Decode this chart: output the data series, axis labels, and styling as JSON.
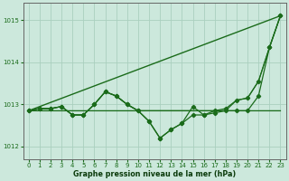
{
  "xlabel": "Graphe pression niveau de la mer (hPa)",
  "ylim": [
    1011.7,
    1015.4
  ],
  "xlim": [
    -0.5,
    23.5
  ],
  "yticks": [
    1012,
    1013,
    1014,
    1015
  ],
  "xticks": [
    0,
    1,
    2,
    3,
    4,
    5,
    6,
    7,
    8,
    9,
    10,
    11,
    12,
    13,
    14,
    15,
    16,
    17,
    18,
    19,
    20,
    21,
    22,
    23
  ],
  "background_color": "#cce8dc",
  "grid_color": "#aacfbf",
  "line_color": "#1a6b1a",
  "series_with_markers": [
    [
      1012.85,
      1012.9,
      1012.9,
      1012.95,
      1012.75,
      1012.75,
      1013.0,
      1013.3,
      1013.2,
      1013.0,
      1012.85,
      1012.6,
      1012.2,
      1012.4,
      1012.55,
      1012.95,
      1012.75,
      1012.85,
      1012.9,
      1013.1,
      1013.15,
      1013.55,
      1014.35,
      1015.1
    ]
  ],
  "series_no_markers": [
    [
      1012.85,
      1012.85,
      1012.85,
      1012.85,
      1012.85,
      1012.85,
      1012.85,
      1012.85,
      1012.85,
      1012.85,
      1012.85,
      1012.85,
      1012.85,
      1012.85,
      1012.85,
      1012.85,
      1012.85,
      1012.85,
      1012.85,
      1012.85,
      1012.85,
      1012.85,
      1012.85,
      1012.85
    ],
    [
      1012.85,
      1012.9,
      1012.9,
      1012.95,
      1012.75,
      1012.75,
      1013.0,
      1013.3,
      1013.2,
      1013.0,
      1012.85,
      1012.85,
      1012.85,
      1012.85,
      1012.85,
      1012.85,
      1012.85,
      1012.85,
      1012.85,
      1012.85,
      1012.85,
      1012.85,
      1012.85,
      1012.85
    ],
    [
      1012.85,
      1012.85,
      1012.85,
      1012.85,
      1012.85,
      1012.85,
      1012.85,
      1012.85,
      1012.85,
      1012.85,
      1012.85,
      1012.85,
      1012.85,
      1012.85,
      1012.85,
      1012.85,
      1012.85,
      1012.85,
      1012.85,
      1013.1,
      1013.15,
      1013.55,
      1014.35,
      1015.1
    ]
  ],
  "diagonal_line": [
    [
      0,
      1012.85
    ],
    [
      23,
      1015.1
    ]
  ],
  "series_markers_only": [
    [
      1012.85,
      1012.9,
      1012.9,
      1012.95,
      1012.75,
      1012.75,
      1013.0,
      1013.3,
      1013.2,
      1013.0,
      1012.85,
      1012.6,
      1012.2,
      1012.4,
      1012.55,
      1012.75,
      1012.75,
      1012.8,
      1012.85,
      1012.85,
      1012.85,
      1013.2,
      1014.35,
      1015.1
    ]
  ]
}
